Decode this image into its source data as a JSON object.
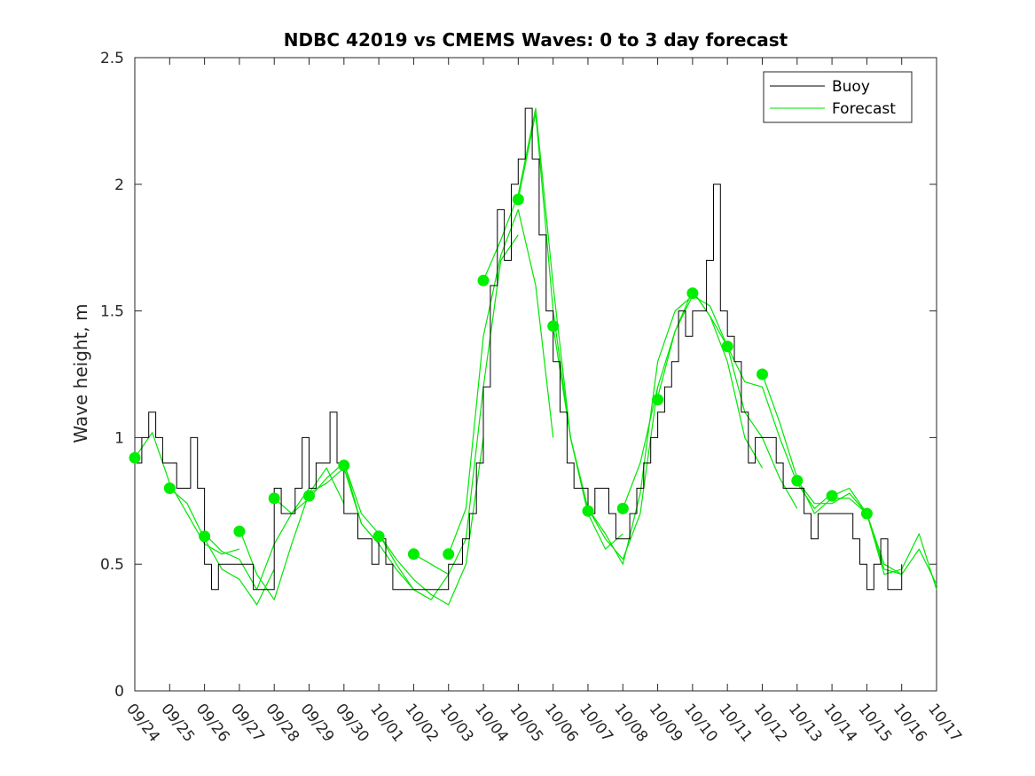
{
  "chart_data": {
    "type": "line",
    "title": "NDBC 42019 vs CMEMS Waves: 0 to 3 day forecast",
    "xlabel": "",
    "ylabel": "Wave height, m",
    "ylim": [
      0,
      2.5
    ],
    "yticks": [
      "0",
      "0.5",
      "1",
      "1.5",
      "2",
      "2.5"
    ],
    "x_unit": "day index from 09/24",
    "xlim": [
      0,
      23
    ],
    "xtick_labels": [
      "09/24",
      "09/25",
      "09/26",
      "09/27",
      "09/28",
      "09/29",
      "09/30",
      "10/01",
      "10/02",
      "10/03",
      "10/04",
      "10/05",
      "10/06",
      "10/07",
      "10/08",
      "10/09",
      "10/10",
      "10/11",
      "10/12",
      "10/13",
      "10/14",
      "10/15",
      "10/16",
      "10/17"
    ],
    "legend": {
      "placement": "top-right",
      "entries": [
        {
          "label": "Buoy",
          "color": "#000000"
        },
        {
          "label": "Forecast",
          "color": "#00e600"
        }
      ]
    },
    "grid": false,
    "colors": {
      "buoy": "#000000",
      "forecast": "#00e600",
      "marker": "#00ee00"
    },
    "buoy": {
      "x": [
        0,
        0.2,
        0.4,
        0.6,
        0.8,
        1,
        1.2,
        1.4,
        1.6,
        1.8,
        2,
        2.2,
        2.4,
        2.6,
        2.8,
        3,
        3.2,
        3.4,
        3.6,
        3.8,
        4,
        4.2,
        4.4,
        4.6,
        4.8,
        5,
        5.2,
        5.4,
        5.6,
        5.8,
        6,
        6.2,
        6.4,
        6.6,
        6.8,
        7,
        7.2,
        7.4,
        7.6,
        7.8,
        8,
        8.2,
        8.4,
        8.6,
        8.8,
        9,
        9.2,
        9.4,
        9.6,
        9.8,
        10,
        10.2,
        10.4,
        10.6,
        10.8,
        11,
        11.2,
        11.4,
        11.6,
        11.8,
        12,
        12.2,
        12.4,
        12.6,
        12.8,
        13,
        13.2,
        13.4,
        13.6,
        13.8,
        14,
        14.2,
        14.4,
        14.6,
        14.8,
        15,
        15.2,
        15.4,
        15.6,
        15.8,
        16,
        16.2,
        16.4,
        16.6,
        16.8,
        17,
        17.2,
        17.4,
        17.6,
        17.8,
        18,
        18.2,
        18.4,
        18.6,
        18.8,
        19,
        19.2,
        19.4,
        19.6,
        19.8,
        20,
        20.2,
        20.4,
        20.6,
        20.8,
        21,
        21.2,
        21.4,
        21.6,
        21.8,
        22
      ],
      "y": [
        0.9,
        1.0,
        1.1,
        1.0,
        0.9,
        0.9,
        0.8,
        0.8,
        1.0,
        0.8,
        0.5,
        0.4,
        0.5,
        0.5,
        0.5,
        0.5,
        0.5,
        0.4,
        0.4,
        0.4,
        0.8,
        0.7,
        0.7,
        0.8,
        1.0,
        0.8,
        0.9,
        0.9,
        1.1,
        0.9,
        0.7,
        0.7,
        0.6,
        0.6,
        0.5,
        0.6,
        0.5,
        0.4,
        0.4,
        0.4,
        0.4,
        0.4,
        0.4,
        0.4,
        0.4,
        0.5,
        0.5,
        0.6,
        0.7,
        0.9,
        1.2,
        1.6,
        1.9,
        1.7,
        2.0,
        2.1,
        2.3,
        2.1,
        1.8,
        1.5,
        1.3,
        1.1,
        0.9,
        0.8,
        0.8,
        0.7,
        0.8,
        0.8,
        0.7,
        0.6,
        0.6,
        0.7,
        0.8,
        0.9,
        1.0,
        1.1,
        1.2,
        1.3,
        1.5,
        1.4,
        1.5,
        1.5,
        1.7,
        2.0,
        1.5,
        1.4,
        1.3,
        1.1,
        0.9,
        1.0,
        1.0,
        1.0,
        0.9,
        0.8,
        0.8,
        0.8,
        0.7,
        0.6,
        0.7,
        0.7,
        0.7,
        0.7,
        0.7,
        0.6,
        0.5,
        0.4,
        0.5,
        0.6,
        0.4,
        0.4,
        0.5
      ]
    },
    "forecasts": [
      {
        "x": [
          0,
          0.5,
          1,
          1.5,
          2,
          2.5,
          3
        ],
        "y": [
          0.92,
          1.02,
          0.82,
          0.7,
          0.58,
          0.54,
          0.56
        ]
      },
      {
        "x": [
          1,
          1.5,
          2,
          2.5,
          3,
          3.5,
          4
        ],
        "y": [
          0.8,
          0.74,
          0.6,
          0.48,
          0.44,
          0.34,
          0.48
        ]
      },
      {
        "x": [
          2,
          2.5,
          3,
          3.5,
          4,
          4.5,
          5
        ],
        "y": [
          0.62,
          0.55,
          0.52,
          0.4,
          0.58,
          0.7,
          0.8
        ]
      },
      {
        "x": [
          3,
          3.5,
          4,
          4.5,
          5,
          5.5,
          6
        ],
        "y": [
          0.64,
          0.46,
          0.36,
          0.58,
          0.78,
          0.88,
          0.74
        ]
      },
      {
        "x": [
          4,
          4.5,
          5,
          5.5,
          6,
          6.5,
          7
        ],
        "y": [
          0.76,
          0.7,
          0.76,
          0.84,
          0.9,
          0.66,
          0.58
        ]
      },
      {
        "x": [
          5,
          5.5,
          6,
          6.5,
          7,
          7.5,
          8
        ],
        "y": [
          0.78,
          0.82,
          0.88,
          0.66,
          0.58,
          0.48,
          0.4
        ]
      },
      {
        "x": [
          6,
          6.5,
          7,
          7.5,
          8,
          8.5,
          9
        ],
        "y": [
          0.9,
          0.7,
          0.62,
          0.5,
          0.4,
          0.36,
          0.46
        ]
      },
      {
        "x": [
          7,
          7.5,
          8,
          8.5,
          9,
          9.5,
          10
        ],
        "y": [
          0.62,
          0.52,
          0.44,
          0.38,
          0.34,
          0.5,
          1.0
        ]
      },
      {
        "x": [
          8,
          8.5,
          9,
          9.5,
          10,
          10.5,
          11
        ],
        "y": [
          0.54,
          0.5,
          0.46,
          0.6,
          1.2,
          1.7,
          1.8
        ]
      },
      {
        "x": [
          9,
          9.5,
          10,
          10.5,
          11,
          11.5,
          12
        ],
        "y": [
          0.54,
          0.72,
          1.4,
          1.72,
          1.9,
          1.6,
          1.0
        ]
      },
      {
        "x": [
          10,
          10.5,
          11,
          11.5,
          12,
          12.5,
          13
        ],
        "y": [
          1.62,
          1.78,
          1.96,
          2.3,
          1.6,
          1.0,
          0.7
        ]
      },
      {
        "x": [
          11,
          11.5,
          12,
          12.5,
          13,
          13.5,
          14
        ],
        "y": [
          1.94,
          2.28,
          1.5,
          1.0,
          0.7,
          0.56,
          0.62
        ]
      },
      {
        "x": [
          12,
          12.5,
          13,
          13.5,
          14,
          14.5,
          15
        ],
        "y": [
          1.44,
          1.0,
          0.72,
          0.6,
          0.52,
          0.7,
          1.2
        ]
      },
      {
        "x": [
          13,
          13.5,
          14,
          14.5,
          15,
          15.5,
          16
        ],
        "y": [
          0.72,
          0.62,
          0.5,
          0.78,
          1.3,
          1.5,
          1.56
        ]
      },
      {
        "x": [
          14,
          14.5,
          15,
          15.5,
          16,
          16.5,
          17
        ],
        "y": [
          0.72,
          0.9,
          1.2,
          1.42,
          1.56,
          1.52,
          1.36
        ]
      },
      {
        "x": [
          15,
          15.5,
          16,
          16.5,
          17,
          17.5,
          18
        ],
        "y": [
          1.16,
          1.42,
          1.58,
          1.48,
          1.3,
          1.0,
          0.88
        ]
      },
      {
        "x": [
          16,
          16.5,
          17,
          17.5,
          18,
          18.5,
          19
        ],
        "y": [
          1.58,
          1.48,
          1.36,
          1.1,
          1.0,
          0.84,
          0.72
        ]
      },
      {
        "x": [
          17,
          17.5,
          18,
          18.5,
          19,
          19.5,
          20
        ],
        "y": [
          1.36,
          1.22,
          1.2,
          1.0,
          0.82,
          0.72,
          0.78
        ]
      },
      {
        "x": [
          18,
          18.5,
          19,
          19.5,
          20,
          20.5,
          21
        ],
        "y": [
          1.25,
          1.06,
          0.84,
          0.7,
          0.76,
          0.76,
          0.7
        ]
      },
      {
        "x": [
          19,
          19.5,
          20,
          20.5,
          21,
          21.5,
          22
        ],
        "y": [
          0.83,
          0.74,
          0.74,
          0.78,
          0.7,
          0.48,
          0.46
        ]
      },
      {
        "x": [
          20,
          20.5,
          21,
          21.5,
          22,
          22.5,
          23
        ],
        "y": [
          0.77,
          0.8,
          0.7,
          0.46,
          0.48,
          0.62,
          0.4
        ]
      },
      {
        "x": [
          21,
          21.5,
          22,
          22.5,
          23
        ],
        "y": [
          0.7,
          0.5,
          0.46,
          0.56,
          0.42
        ]
      }
    ],
    "forecast_start_markers": {
      "x": [
        0,
        1,
        2,
        3,
        4,
        5,
        6,
        7,
        8,
        9,
        10,
        11,
        12,
        13,
        14,
        15,
        16,
        17,
        18,
        19,
        20,
        21
      ],
      "y": [
        0.92,
        0.8,
        0.61,
        0.63,
        0.76,
        0.77,
        0.89,
        0.61,
        0.54,
        0.54,
        1.62,
        1.94,
        1.44,
        0.71,
        0.72,
        1.15,
        1.57,
        1.36,
        1.25,
        0.83,
        0.77,
        0.7
      ]
    }
  }
}
